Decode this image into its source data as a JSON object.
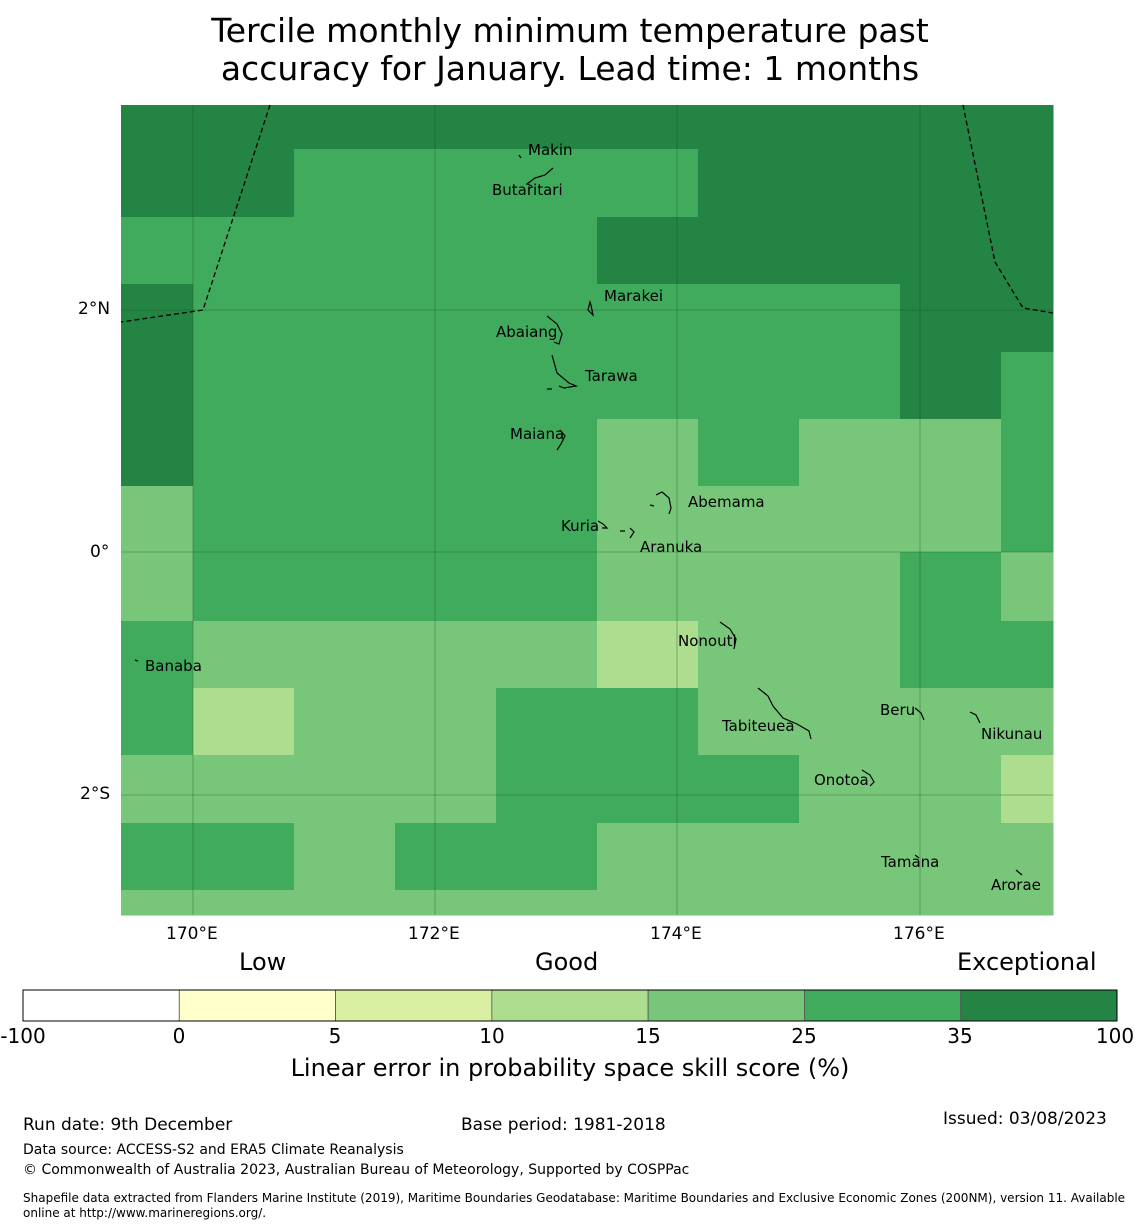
{
  "title": {
    "line1": "Tercile monthly minimum temperature past",
    "line2": "accuracy for January. Lead time: 1 months"
  },
  "map": {
    "x_ticks": [
      "170°E",
      "172°E",
      "174°E",
      "176°E"
    ],
    "y_ticks": [
      "2°N",
      "0°",
      "2°S"
    ],
    "color_class_by_level": [
      "#ffffff",
      "#ffffcc",
      "#d9f0a3",
      "#addd8e",
      "#78c679",
      "#41ab5d",
      "#238443"
    ],
    "grid": [
      [
        6,
        6,
        6,
        6,
        6,
        6,
        6,
        6,
        6
      ],
      [
        6,
        5,
        5,
        5,
        5,
        5,
        6,
        6,
        6
      ],
      [
        5,
        5,
        5,
        5,
        5,
        5,
        6,
        6,
        6
      ],
      [
        5,
        5,
        5,
        5,
        5,
        5,
        6,
        6,
        6
      ],
      [
        6,
        5,
        5,
        5,
        5,
        5,
        5,
        5,
        6
      ],
      [
        6,
        5,
        5,
        5,
        5,
        5,
        5,
        5,
        6
      ],
      [
        6,
        5,
        5,
        5,
        5,
        5,
        5,
        5,
        6
      ],
      [
        6,
        5,
        5,
        5,
        5,
        4,
        4,
        5,
        4
      ],
      [
        4,
        5,
        5,
        5,
        5,
        4,
        4,
        5,
        4
      ],
      [
        4,
        5,
        5,
        5,
        5,
        4,
        4,
        4,
        4
      ],
      [
        4,
        5,
        5,
        5,
        5,
        4,
        4,
        4,
        4
      ],
      [
        5,
        4,
        4,
        4,
        4,
        3,
        4,
        4,
        4
      ],
      [
        5,
        3,
        4,
        4,
        5,
        5,
        4,
        4,
        4
      ],
      [
        4,
        4,
        4,
        4,
        5,
        5,
        5,
        4,
        4
      ],
      [
        5,
        5,
        4,
        5,
        5,
        4,
        4,
        4,
        4
      ],
      [
        4,
        4,
        4,
        4,
        4,
        4,
        4,
        4,
        4
      ]
    ],
    "islands": [
      {
        "name": "Makin"
      },
      {
        "name": "Butaritari"
      },
      {
        "name": "Marakei"
      },
      {
        "name": "Abaiang"
      },
      {
        "name": "Tarawa"
      },
      {
        "name": "Maiana"
      },
      {
        "name": "Abemama"
      },
      {
        "name": "Kuria"
      },
      {
        "name": "Aranuka"
      },
      {
        "name": "Nonouti"
      },
      {
        "name": "Banaba"
      },
      {
        "name": "Beru"
      },
      {
        "name": "Tabiteuea"
      },
      {
        "name": "Nikunau"
      },
      {
        "name": "Onotoa"
      },
      {
        "name": "Tamana"
      },
      {
        "name": "Arorae"
      }
    ]
  },
  "colorbar": {
    "categories": [
      "Low",
      "Good",
      "Exceptional"
    ],
    "ticks": [
      "-100",
      "0",
      "5",
      "10",
      "15",
      "25",
      "35",
      "100"
    ],
    "colors": [
      "#ffffff",
      "#ffffcc",
      "#d9f0a3",
      "#addd8e",
      "#78c679",
      "#41ab5d",
      "#238443"
    ],
    "label": "Linear error in probability space skill score (%)"
  },
  "footer": {
    "run_date": "Run date: 9th December",
    "base_period": "Base period: 1981-2018",
    "issued": "Issued: 03/08/2023",
    "data_source": "Data source: ACCESS-S2 and ERA5 Climate Reanalysis",
    "copyright": "© Commonwealth of Australia 2023, Australian Bureau of Meteorology, Supported by COSPPac",
    "shapefile": "Shapefile data extracted from Flanders Marine Institute (2019), Maritime Boundaries Geodatabase: Maritime Boundaries and Exclusive Economic Zones (200NM), version 11. Available online at http://www.marineregions.org/."
  }
}
